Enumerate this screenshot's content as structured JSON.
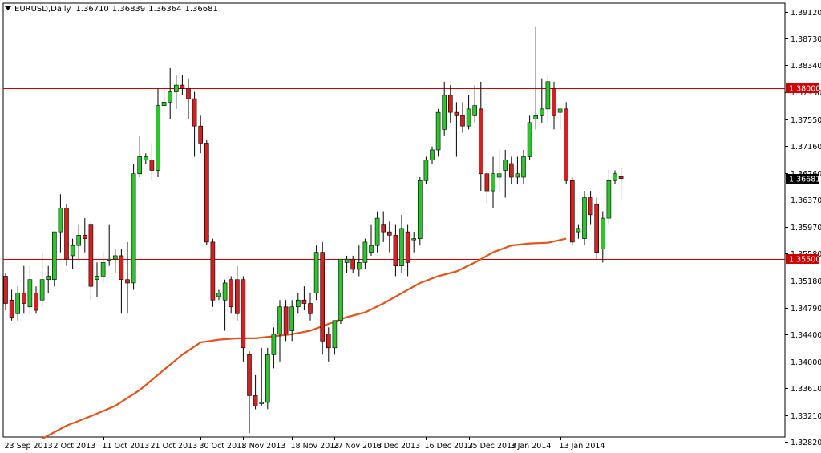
{
  "header": {
    "symbol": "EURUSD,Daily",
    "open": "1.36710",
    "high": "1.36839",
    "low": "1.36364",
    "close": "1.36681"
  },
  "colors": {
    "bull": "#2bc62b",
    "bear": "#d42020",
    "line": "#e2541c",
    "level": "#cc0000",
    "axis": "#000000"
  },
  "chart_data": {
    "type": "candlestick",
    "title": "",
    "xlabel": "",
    "ylabel": "",
    "ylim": [
      1.3282,
      1.3921
    ],
    "yticks": [
      "1.39120",
      "1.38730",
      "1.38340",
      "1.37950",
      "1.37550",
      "1.37160",
      "1.36760",
      "1.36370",
      "1.35970",
      "1.35580",
      "1.35180",
      "1.34790",
      "1.34400",
      "1.34000",
      "1.33610",
      "1.33210",
      "1.32820"
    ],
    "xticks": [
      {
        "label": "23 Sep 2013",
        "bar": 0
      },
      {
        "label": "2 Oct 2013",
        "bar": 8
      },
      {
        "label": "11 Oct 2013",
        "bar": 16
      },
      {
        "label": "21 Oct 2013",
        "bar": 24
      },
      {
        "label": "30 Oct 2013",
        "bar": 32
      },
      {
        "label": "8 Nov 2013",
        "bar": 39
      },
      {
        "label": "18 Nov 2013",
        "bar": 47
      },
      {
        "label": "27 Nov 2013",
        "bar": 54
      },
      {
        "label": "6 Dec 2013",
        "bar": 61
      },
      {
        "label": "16 Dec 2013",
        "bar": 69
      },
      {
        "label": "25 Dec 2013",
        "bar": 76
      },
      {
        "label": "3 Jan 2014",
        "bar": 83
      },
      {
        "label": "13 Jan 2014",
        "bar": 91
      }
    ],
    "levels": [
      {
        "value": 1.38,
        "label": "1.38000"
      },
      {
        "value": 1.355,
        "label": "1.35500"
      }
    ],
    "current_price": {
      "value": 1.36681,
      "label": "1.36681"
    },
    "candles": [
      {
        "o": 1.3525,
        "h": 1.353,
        "l": 1.3475,
        "c": 1.3485
      },
      {
        "o": 1.349,
        "h": 1.3505,
        "l": 1.346,
        "c": 1.3465
      },
      {
        "o": 1.347,
        "h": 1.351,
        "l": 1.346,
        "c": 1.35
      },
      {
        "o": 1.35,
        "h": 1.354,
        "l": 1.347,
        "c": 1.3485
      },
      {
        "o": 1.348,
        "h": 1.354,
        "l": 1.347,
        "c": 1.352
      },
      {
        "o": 1.35,
        "h": 1.351,
        "l": 1.347,
        "c": 1.3475
      },
      {
        "o": 1.349,
        "h": 1.356,
        "l": 1.348,
        "c": 1.352
      },
      {
        "o": 1.352,
        "h": 1.354,
        "l": 1.35,
        "c": 1.3525
      },
      {
        "o": 1.352,
        "h": 1.359,
        "l": 1.351,
        "c": 1.359
      },
      {
        "o": 1.359,
        "h": 1.3645,
        "l": 1.356,
        "c": 1.3625
      },
      {
        "o": 1.3625,
        "h": 1.363,
        "l": 1.354,
        "c": 1.355
      },
      {
        "o": 1.3555,
        "h": 1.358,
        "l": 1.3535,
        "c": 1.357
      },
      {
        "o": 1.357,
        "h": 1.36,
        "l": 1.355,
        "c": 1.3585
      },
      {
        "o": 1.3585,
        "h": 1.361,
        "l": 1.356,
        "c": 1.358
      },
      {
        "o": 1.36,
        "h": 1.3605,
        "l": 1.349,
        "c": 1.351
      },
      {
        "o": 1.352,
        "h": 1.3545,
        "l": 1.3495,
        "c": 1.3525
      },
      {
        "o": 1.3525,
        "h": 1.356,
        "l": 1.3515,
        "c": 1.3545
      },
      {
        "o": 1.355,
        "h": 1.36,
        "l": 1.354,
        "c": 1.355
      },
      {
        "o": 1.355,
        "h": 1.3565,
        "l": 1.353,
        "c": 1.3555
      },
      {
        "o": 1.3555,
        "h": 1.3565,
        "l": 1.347,
        "c": 1.352
      },
      {
        "o": 1.352,
        "h": 1.3575,
        "l": 1.347,
        "c": 1.3515
      },
      {
        "o": 1.3515,
        "h": 1.369,
        "l": 1.3505,
        "c": 1.3675
      },
      {
        "o": 1.3675,
        "h": 1.373,
        "l": 1.367,
        "c": 1.37
      },
      {
        "o": 1.3695,
        "h": 1.3705,
        "l": 1.369,
        "c": 1.37
      },
      {
        "o": 1.3695,
        "h": 1.372,
        "l": 1.3665,
        "c": 1.368
      },
      {
        "o": 1.368,
        "h": 1.38,
        "l": 1.367,
        "c": 1.3775
      },
      {
        "o": 1.3775,
        "h": 1.38,
        "l": 1.3775,
        "c": 1.378
      },
      {
        "o": 1.378,
        "h": 1.383,
        "l": 1.3755,
        "c": 1.3795
      },
      {
        "o": 1.3795,
        "h": 1.382,
        "l": 1.377,
        "c": 1.3805
      },
      {
        "o": 1.3805,
        "h": 1.382,
        "l": 1.379,
        "c": 1.38
      },
      {
        "o": 1.38,
        "h": 1.3815,
        "l": 1.3755,
        "c": 1.3785
      },
      {
        "o": 1.3785,
        "h": 1.3795,
        "l": 1.37,
        "c": 1.3745
      },
      {
        "o": 1.3745,
        "h": 1.376,
        "l": 1.3705,
        "c": 1.372
      },
      {
        "o": 1.372,
        "h": 1.3725,
        "l": 1.357,
        "c": 1.3575
      },
      {
        "o": 1.3575,
        "h": 1.358,
        "l": 1.348,
        "c": 1.349
      },
      {
        "o": 1.3495,
        "h": 1.3505,
        "l": 1.349,
        "c": 1.35
      },
      {
        "o": 1.349,
        "h": 1.352,
        "l": 1.3445,
        "c": 1.3515
      },
      {
        "o": 1.352,
        "h": 1.3525,
        "l": 1.347,
        "c": 1.348
      },
      {
        "o": 1.352,
        "h": 1.354,
        "l": 1.346,
        "c": 1.347
      },
      {
        "o": 1.352,
        "h": 1.3525,
        "l": 1.34,
        "c": 1.342
      },
      {
        "o": 1.341,
        "h": 1.3415,
        "l": 1.3295,
        "c": 1.335
      },
      {
        "o": 1.335,
        "h": 1.338,
        "l": 1.333,
        "c": 1.3335
      },
      {
        "o": 1.334,
        "h": 1.342,
        "l": 1.3335,
        "c": 1.334
      },
      {
        "o": 1.334,
        "h": 1.342,
        "l": 1.333,
        "c": 1.341
      },
      {
        "o": 1.341,
        "h": 1.345,
        "l": 1.339,
        "c": 1.344
      },
      {
        "o": 1.344,
        "h": 1.349,
        "l": 1.34,
        "c": 1.348
      },
      {
        "o": 1.348,
        "h": 1.349,
        "l": 1.343,
        "c": 1.344
      },
      {
        "o": 1.3445,
        "h": 1.349,
        "l": 1.343,
        "c": 1.348
      },
      {
        "o": 1.348,
        "h": 1.35,
        "l": 1.347,
        "c": 1.349
      },
      {
        "o": 1.349,
        "h": 1.351,
        "l": 1.3475,
        "c": 1.3485
      },
      {
        "o": 1.3485,
        "h": 1.35,
        "l": 1.346,
        "c": 1.347
      },
      {
        "o": 1.35,
        "h": 1.357,
        "l": 1.349,
        "c": 1.356
      },
      {
        "o": 1.356,
        "h": 1.3575,
        "l": 1.341,
        "c": 1.343
      },
      {
        "o": 1.344,
        "h": 1.345,
        "l": 1.34,
        "c": 1.342
      },
      {
        "o": 1.342,
        "h": 1.346,
        "l": 1.341,
        "c": 1.346
      },
      {
        "o": 1.346,
        "h": 1.355,
        "l": 1.3455,
        "c": 1.355
      },
      {
        "o": 1.3545,
        "h": 1.3555,
        "l": 1.353,
        "c": 1.355
      },
      {
        "o": 1.355,
        "h": 1.3555,
        "l": 1.353,
        "c": 1.3535
      },
      {
        "o": 1.3535,
        "h": 1.357,
        "l": 1.3525,
        "c": 1.3545
      },
      {
        "o": 1.3545,
        "h": 1.358,
        "l": 1.3535,
        "c": 1.3575
      },
      {
        "o": 1.356,
        "h": 1.36,
        "l": 1.3555,
        "c": 1.357
      },
      {
        "o": 1.357,
        "h": 1.362,
        "l": 1.356,
        "c": 1.361
      },
      {
        "o": 1.36,
        "h": 1.362,
        "l": 1.3575,
        "c": 1.359
      },
      {
        "o": 1.359,
        "h": 1.3605,
        "l": 1.356,
        "c": 1.3585
      },
      {
        "o": 1.3585,
        "h": 1.36,
        "l": 1.3525,
        "c": 1.354
      },
      {
        "o": 1.354,
        "h": 1.3615,
        "l": 1.353,
        "c": 1.3595
      },
      {
        "o": 1.359,
        "h": 1.36,
        "l": 1.3525,
        "c": 1.3545
      },
      {
        "o": 1.358,
        "h": 1.359,
        "l": 1.356,
        "c": 1.358
      },
      {
        "o": 1.358,
        "h": 1.367,
        "l": 1.357,
        "c": 1.3665
      },
      {
        "o": 1.3665,
        "h": 1.37,
        "l": 1.366,
        "c": 1.3695
      },
      {
        "o": 1.3695,
        "h": 1.3715,
        "l": 1.369,
        "c": 1.371
      },
      {
        "o": 1.371,
        "h": 1.377,
        "l": 1.37,
        "c": 1.3765
      },
      {
        "o": 1.374,
        "h": 1.381,
        "l": 1.373,
        "c": 1.379
      },
      {
        "o": 1.379,
        "h": 1.3805,
        "l": 1.375,
        "c": 1.3765
      },
      {
        "o": 1.3765,
        "h": 1.378,
        "l": 1.37,
        "c": 1.376
      },
      {
        "o": 1.376,
        "h": 1.378,
        "l": 1.3735,
        "c": 1.3745
      },
      {
        "o": 1.3745,
        "h": 1.379,
        "l": 1.374,
        "c": 1.377
      },
      {
        "o": 1.376,
        "h": 1.3805,
        "l": 1.375,
        "c": 1.3775
      },
      {
        "o": 1.377,
        "h": 1.381,
        "l": 1.365,
        "c": 1.3675
      },
      {
        "o": 1.3675,
        "h": 1.368,
        "l": 1.363,
        "c": 1.365
      },
      {
        "o": 1.365,
        "h": 1.37,
        "l": 1.3625,
        "c": 1.3675
      },
      {
        "o": 1.367,
        "h": 1.371,
        "l": 1.365,
        "c": 1.3675
      },
      {
        "o": 1.368,
        "h": 1.371,
        "l": 1.364,
        "c": 1.3695
      },
      {
        "o": 1.369,
        "h": 1.37,
        "l": 1.366,
        "c": 1.367
      },
      {
        "o": 1.367,
        "h": 1.37,
        "l": 1.366,
        "c": 1.3675
      },
      {
        "o": 1.367,
        "h": 1.371,
        "l": 1.366,
        "c": 1.37
      },
      {
        "o": 1.37,
        "h": 1.376,
        "l": 1.3695,
        "c": 1.375
      },
      {
        "o": 1.3755,
        "h": 1.389,
        "l": 1.374,
        "c": 1.376
      },
      {
        "o": 1.376,
        "h": 1.3815,
        "l": 1.375,
        "c": 1.377
      },
      {
        "o": 1.377,
        "h": 1.382,
        "l": 1.375,
        "c": 1.381
      },
      {
        "o": 1.38,
        "h": 1.381,
        "l": 1.374,
        "c": 1.376
      },
      {
        "o": 1.3765,
        "h": 1.377,
        "l": 1.374,
        "c": 1.377
      },
      {
        "o": 1.377,
        "h": 1.378,
        "l": 1.366,
        "c": 1.3665
      },
      {
        "o": 1.3665,
        "h": 1.367,
        "l": 1.357,
        "c": 1.3575
      },
      {
        "o": 1.359,
        "h": 1.36,
        "l": 1.358,
        "c": 1.3595
      },
      {
        "o": 1.358,
        "h": 1.365,
        "l": 1.357,
        "c": 1.364
      },
      {
        "o": 1.364,
        "h": 1.365,
        "l": 1.36,
        "c": 1.3615
      },
      {
        "o": 1.363,
        "h": 1.364,
        "l": 1.355,
        "c": 1.356
      },
      {
        "o": 1.3565,
        "h": 1.362,
        "l": 1.3545,
        "c": 1.361
      },
      {
        "o": 1.361,
        "h": 1.368,
        "l": 1.36,
        "c": 1.3665
      },
      {
        "o": 1.3665,
        "h": 1.368,
        "l": 1.366,
        "c": 1.3675
      },
      {
        "o": 1.3671,
        "h": 1.36839,
        "l": 1.36364,
        "c": 1.36681
      }
    ],
    "sma": [
      {
        "bar": 6,
        "v": 1.3287
      },
      {
        "bar": 10,
        "v": 1.3306
      },
      {
        "bar": 14,
        "v": 1.332
      },
      {
        "bar": 18,
        "v": 1.3335
      },
      {
        "bar": 22,
        "v": 1.3358
      },
      {
        "bar": 26,
        "v": 1.3388
      },
      {
        "bar": 29,
        "v": 1.341
      },
      {
        "bar": 32,
        "v": 1.3428
      },
      {
        "bar": 35,
        "v": 1.3432
      },
      {
        "bar": 38,
        "v": 1.3434
      },
      {
        "bar": 41,
        "v": 1.3434
      },
      {
        "bar": 44,
        "v": 1.3437
      },
      {
        "bar": 47,
        "v": 1.344
      },
      {
        "bar": 50,
        "v": 1.3445
      },
      {
        "bar": 53,
        "v": 1.3455
      },
      {
        "bar": 56,
        "v": 1.3465
      },
      {
        "bar": 59,
        "v": 1.3472
      },
      {
        "bar": 62,
        "v": 1.3485
      },
      {
        "bar": 65,
        "v": 1.35
      },
      {
        "bar": 68,
        "v": 1.3515
      },
      {
        "bar": 71,
        "v": 1.3525
      },
      {
        "bar": 74,
        "v": 1.3532
      },
      {
        "bar": 77,
        "v": 1.3545
      },
      {
        "bar": 80,
        "v": 1.356
      },
      {
        "bar": 83,
        "v": 1.357
      },
      {
        "bar": 86,
        "v": 1.3573
      },
      {
        "bar": 89,
        "v": 1.3574
      },
      {
        "bar": 92,
        "v": 1.358
      }
    ]
  }
}
